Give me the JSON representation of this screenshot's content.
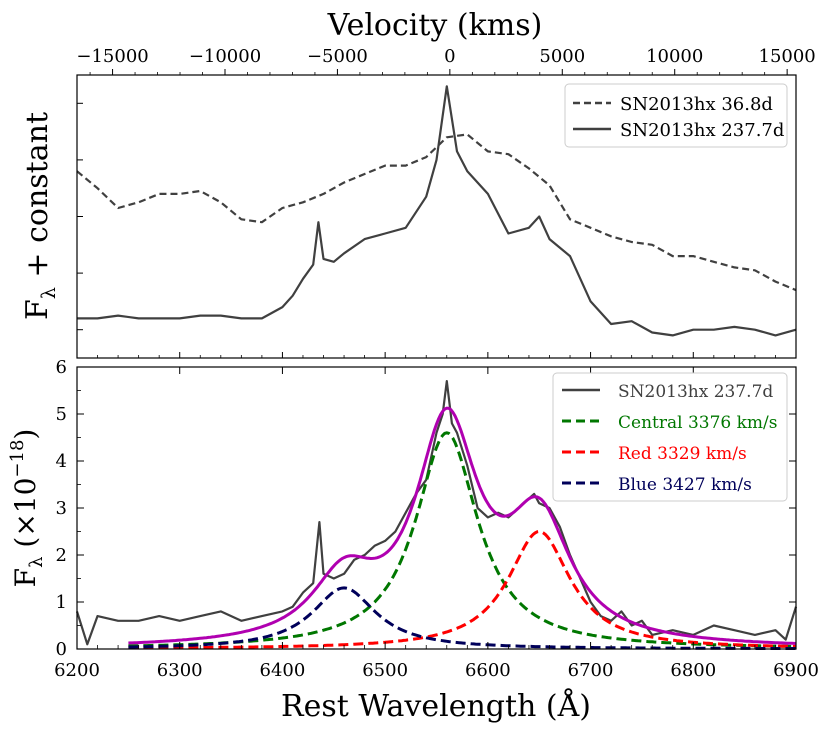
{
  "chart_data": [
    {
      "type": "line",
      "panel": "top",
      "title": "",
      "top_axis_label": "Velocity (kms)",
      "top_axis_ticks": [
        "−15000",
        "−10000",
        "−5000",
        "0",
        "5000",
        "10000",
        "15000"
      ],
      "top_axis_values": [
        -15000,
        -10000,
        -5000,
        0,
        5000,
        10000,
        15000
      ],
      "ylabel_main": "F",
      "ylabel_sub": "λ",
      "ylabel_rest": " + constant",
      "ylim": [
        0,
        1
      ],
      "legend_position": "top-right",
      "legend": [
        {
          "label": "SN2013hx 36.8d",
          "style": "dashed",
          "color": "#404040"
        },
        {
          "label": "SN2013hx 237.7d",
          "style": "solid",
          "color": "#404040"
        }
      ],
      "series": [
        {
          "name": "SN2013hx 36.8d",
          "x": [
            6200,
            6220,
            6240,
            6260,
            6280,
            6300,
            6320,
            6340,
            6360,
            6380,
            6400,
            6420,
            6440,
            6460,
            6480,
            6500,
            6520,
            6540,
            6560,
            6580,
            6600,
            6620,
            6640,
            6660,
            6680,
            6700,
            6720,
            6740,
            6760,
            6780,
            6800,
            6820,
            6840,
            6860,
            6880,
            6900
          ],
          "values": [
            0.66,
            0.6,
            0.53,
            0.55,
            0.58,
            0.58,
            0.59,
            0.55,
            0.49,
            0.48,
            0.53,
            0.55,
            0.58,
            0.62,
            0.65,
            0.68,
            0.68,
            0.71,
            0.78,
            0.79,
            0.73,
            0.72,
            0.67,
            0.61,
            0.49,
            0.46,
            0.43,
            0.41,
            0.4,
            0.36,
            0.36,
            0.34,
            0.32,
            0.31,
            0.27,
            0.24
          ]
        },
        {
          "name": "SN2013hx 237.7d",
          "x": [
            6200,
            6220,
            6240,
            6260,
            6280,
            6300,
            6320,
            6340,
            6360,
            6380,
            6400,
            6410,
            6420,
            6430,
            6435,
            6440,
            6450,
            6460,
            6480,
            6500,
            6520,
            6540,
            6550,
            6560,
            6570,
            6580,
            6600,
            6620,
            6640,
            6650,
            6660,
            6680,
            6700,
            6720,
            6740,
            6760,
            6780,
            6800,
            6820,
            6840,
            6860,
            6880,
            6900
          ],
          "values": [
            0.14,
            0.14,
            0.15,
            0.14,
            0.14,
            0.14,
            0.15,
            0.15,
            0.14,
            0.14,
            0.18,
            0.22,
            0.28,
            0.33,
            0.48,
            0.35,
            0.34,
            0.37,
            0.42,
            0.44,
            0.46,
            0.57,
            0.7,
            0.96,
            0.73,
            0.66,
            0.58,
            0.44,
            0.46,
            0.5,
            0.42,
            0.36,
            0.2,
            0.12,
            0.13,
            0.09,
            0.08,
            0.1,
            0.1,
            0.11,
            0.1,
            0.08,
            0.1
          ]
        }
      ]
    },
    {
      "type": "line",
      "panel": "bottom",
      "title": "",
      "xlabel": "Rest Wavelength (Å)",
      "x_ticks": [
        "6200",
        "6300",
        "6400",
        "6500",
        "6600",
        "6700",
        "6800",
        "6900"
      ],
      "x_values": [
        6200,
        6300,
        6400,
        6500,
        6600,
        6700,
        6800,
        6900
      ],
      "xlim": [
        6200,
        6900
      ],
      "ylabel_main": "F",
      "ylabel_sub": "λ",
      "ylabel_rest": " (×10",
      "ylabel_exp": "−18",
      "ylabel_close": ")",
      "y_ticks": [
        "0",
        "1",
        "2",
        "3",
        "4",
        "5",
        "6"
      ],
      "ylim": [
        0,
        6
      ],
      "legend_position": "top-right",
      "legend": [
        {
          "label": "SN2013hx 237.7d",
          "style": "solid",
          "color": "#404040"
        },
        {
          "label": "Central 3376 km/s",
          "style": "dashed",
          "color": "#007700"
        },
        {
          "label": "Red 3329 km/s",
          "style": "dashed",
          "color": "#ff0000"
        },
        {
          "label": "Blue 3427 km/s",
          "style": "dashed",
          "color": "#00005a"
        }
      ],
      "series": [
        {
          "name": "SN2013hx 237.7d",
          "color": "#404040",
          "x": [
            6200,
            6210,
            6220,
            6240,
            6260,
            6280,
            6300,
            6320,
            6340,
            6360,
            6380,
            6400,
            6410,
            6420,
            6430,
            6436,
            6440,
            6450,
            6460,
            6470,
            6480,
            6490,
            6500,
            6510,
            6520,
            6530,
            6540,
            6550,
            6556,
            6560,
            6565,
            6570,
            6580,
            6590,
            6600,
            6610,
            6620,
            6630,
            6640,
            6645,
            6650,
            6660,
            6670,
            6680,
            6690,
            6700,
            6710,
            6720,
            6730,
            6740,
            6750,
            6760,
            6780,
            6800,
            6820,
            6840,
            6860,
            6880,
            6890,
            6900
          ],
          "values": [
            0.8,
            0.1,
            0.7,
            0.6,
            0.6,
            0.7,
            0.6,
            0.7,
            0.8,
            0.6,
            0.7,
            0.8,
            0.9,
            1.2,
            1.4,
            2.7,
            1.6,
            1.5,
            1.6,
            1.9,
            2.0,
            2.2,
            2.3,
            2.5,
            2.9,
            3.3,
            3.6,
            4.6,
            5.0,
            5.7,
            4.8,
            4.6,
            3.9,
            3.0,
            2.8,
            2.9,
            2.8,
            3.0,
            3.2,
            3.3,
            3.1,
            3.0,
            2.6,
            2.0,
            1.5,
            1.0,
            0.7,
            0.6,
            0.8,
            0.5,
            0.6,
            0.3,
            0.4,
            0.3,
            0.5,
            0.4,
            0.3,
            0.4,
            0.2,
            0.9
          ]
        },
        {
          "name": "Central 3376 km/s",
          "color": "#007700",
          "model": "lorentzian",
          "center": 6560,
          "amplitude": 4.6,
          "fwhm_angstrom": 74,
          "x_range": [
            6250,
            6900
          ]
        },
        {
          "name": "Red 3329 km/s",
          "color": "#ff0000",
          "model": "lorentzian",
          "center": 6650,
          "amplitude": 2.5,
          "fwhm_angstrom": 74,
          "x_range": [
            6250,
            6900
          ]
        },
        {
          "name": "Blue 3427 km/s",
          "color": "#00005a",
          "model": "lorentzian",
          "center": 6460,
          "amplitude": 1.3,
          "fwhm_angstrom": 76,
          "x_range": [
            6250,
            6900
          ]
        },
        {
          "name": "Total fit",
          "color": "#b000b0",
          "model": "sum",
          "x_range": [
            6250,
            6900
          ]
        }
      ]
    }
  ]
}
